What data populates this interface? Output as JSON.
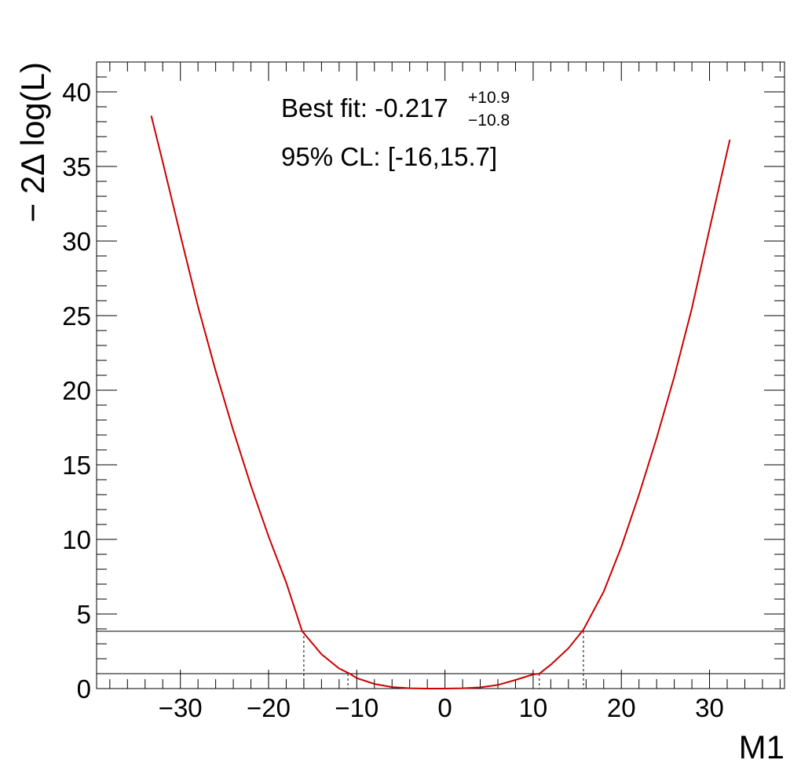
{
  "chart_data": {
    "type": "line",
    "xlabel": "M1",
    "ylabel": "− 2Δ log(L)",
    "xlim": [
      -39.5,
      38.5
    ],
    "ylim": [
      0,
      42
    ],
    "xticks": [
      -30,
      -20,
      -10,
      0,
      10,
      20,
      30
    ],
    "xtick_labels": [
      "−30",
      "−20",
      "−10",
      "0",
      "10",
      "20",
      "30"
    ],
    "yticks": [
      0,
      5,
      10,
      15,
      20,
      25,
      30,
      35,
      40
    ],
    "ytick_labels": [
      "0",
      "5",
      "10",
      "15",
      "20",
      "25",
      "30",
      "35",
      "40"
    ],
    "grid": false,
    "curve_color": "#cc0000",
    "series": [
      {
        "x": [
          -33.3,
          -32,
          -30,
          -28,
          -26,
          -24,
          -22,
          -20,
          -18,
          -16.2,
          -14,
          -12,
          -10.8,
          -10,
          -8,
          -6,
          -4,
          -2,
          -0.2,
          2,
          4,
          6,
          8,
          10,
          10.7,
          12,
          14,
          15.7,
          18,
          20,
          22,
          24,
          26,
          28,
          30,
          32.3
        ],
        "y": [
          38.4,
          35.3,
          30.4,
          25.6,
          21.3,
          17.3,
          13.6,
          10.2,
          7.1,
          3.85,
          2.3,
          1.35,
          1.0,
          0.7,
          0.31,
          0.1,
          0.02,
          0.0,
          0.0,
          0.02,
          0.08,
          0.24,
          0.58,
          0.95,
          1.0,
          1.6,
          2.7,
          3.95,
          6.5,
          9.5,
          13.0,
          16.8,
          20.9,
          25.5,
          30.8,
          36.8
        ]
      }
    ],
    "reference_lines": [
      {
        "y": 1.0,
        "from_x": 10.7,
        "to_x": -10.8,
        "style": "solid"
      },
      {
        "y": 3.84,
        "style": "solid"
      }
    ],
    "interval_markers": [
      {
        "x": -16.0,
        "y": 3.84
      },
      {
        "x": -11.0,
        "y": 1.0
      },
      {
        "x": 10.7,
        "y": 1.0
      },
      {
        "x": 15.7,
        "y": 3.84
      }
    ],
    "annotations": {
      "best_fit_label": "Best fit: -0.217",
      "best_fit_up": "+10.9",
      "best_fit_down": "−10.8",
      "cl_label": "95% CL: [-16,15.7]"
    }
  }
}
